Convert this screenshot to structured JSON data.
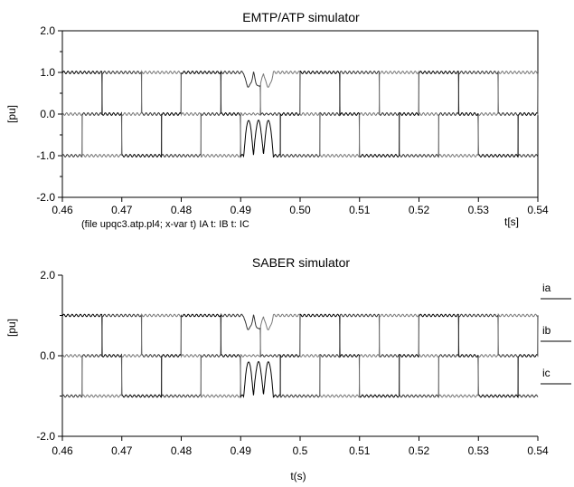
{
  "chart_data": [
    {
      "type": "line",
      "title": "EMTP/ATP simulator",
      "xlabel": "t[s]",
      "ylabel": "[pu]",
      "xlim": [
        0.46,
        0.54
      ],
      "ylim": [
        -2.0,
        2.0
      ],
      "x_ticks": [
        "0.46",
        "0.47",
        "0.48",
        "0.49",
        "0.50",
        "0.51",
        "0.52",
        "0.53",
        "0.54"
      ],
      "y_ticks": [
        "2.0",
        "1.0",
        "0.0",
        "-1.0",
        "-2.0"
      ],
      "footnote": "(file upqc3.atp.pl4; x-var t) IA  t: IB  t: IC",
      "grid": false,
      "series": [
        {
          "name": "IA",
          "color": "#000000",
          "phase_offset": 0.0
        },
        {
          "name": "IB",
          "color": "#333333",
          "phase_offset": 0.006667
        },
        {
          "name": "IC",
          "color": "#777777",
          "phase_offset": 0.013333
        }
      ],
      "switching_period": 0.0033333,
      "disturbance": {
        "t_start": 0.4905,
        "t_end": 0.4955
      }
    },
    {
      "type": "line",
      "title": "SABER simulator",
      "xlabel": "t(s)",
      "ylabel": "[pu]",
      "xlim": [
        0.46,
        0.54
      ],
      "ylim": [
        -2.0,
        2.0
      ],
      "x_ticks": [
        "0.46",
        "0.47",
        "0.48",
        "0.49",
        "0.5",
        "0.51",
        "0.52",
        "0.53",
        "0.54"
      ],
      "y_ticks": [
        "2.0",
        "0.0",
        "-2.0"
      ],
      "grid": false,
      "series": [
        {
          "name": "ia",
          "color": "#000000",
          "phase_offset": 0.0
        },
        {
          "name": "ib",
          "color": "#333333",
          "phase_offset": 0.006667
        },
        {
          "name": "ic",
          "color": "#777777",
          "phase_offset": 0.013333
        }
      ],
      "switching_period": 0.0033333,
      "disturbance": {
        "t_start": 0.4905,
        "t_end": 0.4955
      }
    }
  ]
}
